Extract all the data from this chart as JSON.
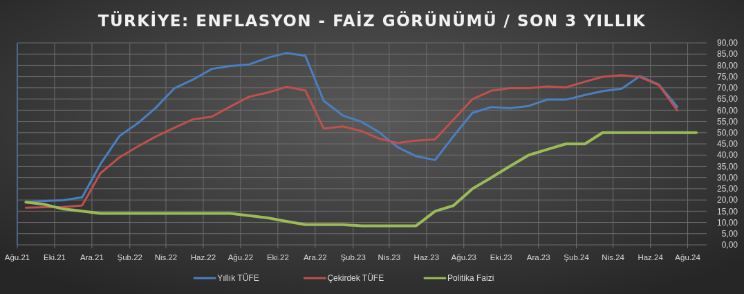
{
  "chart_data": {
    "type": "line",
    "title": "TÜRKİYE: ENFLASYON - FAİZ GÖRÜNÜMÜ / SON 3 YILLIK",
    "x": [
      "2021-08-15",
      "2021-09-15",
      "2021-10-15",
      "2021-11-15",
      "2021-12-15",
      "2022-01-15",
      "2022-02-15",
      "2022-03-15",
      "2022-04-15",
      "2022-05-15",
      "2022-06-15",
      "2022-07-15",
      "2022-08-15",
      "2022-09-15",
      "2022-10-15",
      "2022-11-15",
      "2022-12-15",
      "2023-01-15",
      "2023-02-15",
      "2023-03-15",
      "2023-04-15",
      "2023-05-15",
      "2023-06-15",
      "2023-07-15",
      "2023-08-15",
      "2023-09-15",
      "2023-10-15",
      "2023-11-15",
      "2023-12-15",
      "2024-01-15",
      "2024-02-15",
      "2024-03-15",
      "2024-04-15",
      "2024-05-15",
      "2024-06-15",
      "2024-07-15",
      "2024-08-15"
    ],
    "series": [
      {
        "name": "Yıllık TÜFE",
        "color": "#4a7fc1",
        "values": [
          19.0,
          19.6,
          19.9,
          21.2,
          36.0,
          48.5,
          54.4,
          61.0,
          69.8,
          73.6,
          78.4,
          79.7,
          80.4,
          83.4,
          85.5,
          84.2,
          64.2,
          57.7,
          54.8,
          50.3,
          43.5,
          39.5,
          37.8,
          48.4,
          58.8,
          61.4,
          60.9,
          61.9,
          64.7,
          64.7,
          66.8,
          68.5,
          69.6,
          75.2,
          71.4,
          61.5,
          null
        ]
      },
      {
        "name": "Çekirdek TÜFE",
        "color": "#c0504d",
        "values": [
          16.6,
          16.8,
          16.9,
          17.6,
          31.9,
          39.0,
          44.0,
          48.2,
          52.2,
          55.9,
          57.1,
          61.6,
          66.0,
          67.9,
          70.4,
          68.8,
          51.8,
          52.8,
          50.7,
          47.4,
          45.4,
          46.5,
          47.0,
          55.8,
          64.9,
          68.7,
          69.8,
          69.8,
          70.6,
          70.2,
          72.7,
          74.9,
          75.6,
          74.8,
          71.2,
          59.9,
          null
        ]
      },
      {
        "name": "Politika Faizi",
        "color": "#9bbb59",
        "values": [
          19.0,
          18.0,
          16.0,
          15.0,
          14.0,
          14.0,
          14.0,
          14.0,
          14.0,
          14.0,
          14.0,
          14.0,
          13.0,
          12.0,
          10.5,
          9.0,
          9.0,
          9.0,
          8.5,
          8.5,
          8.5,
          8.5,
          15.0,
          17.5,
          25.0,
          30.0,
          35.0,
          40.0,
          42.5,
          45.0,
          45.0,
          50.0,
          50.0,
          50.0,
          50.0,
          50.0,
          50.0
        ]
      }
    ],
    "xlim": [
      "2021-08-01",
      "2024-09-01"
    ],
    "xticks": [
      {
        "value": "2021-08-01",
        "label": "Ağu.21"
      },
      {
        "value": "2021-10-01",
        "label": "Eki.21"
      },
      {
        "value": "2021-12-01",
        "label": "Ara.21"
      },
      {
        "value": "2022-02-01",
        "label": "Şub.22"
      },
      {
        "value": "2022-04-01",
        "label": "Nis.22"
      },
      {
        "value": "2022-06-01",
        "label": "Haz.22"
      },
      {
        "value": "2022-08-01",
        "label": "Ağu.22"
      },
      {
        "value": "2022-10-01",
        "label": "Eki.22"
      },
      {
        "value": "2022-12-01",
        "label": "Ara.22"
      },
      {
        "value": "2023-02-01",
        "label": "Şub.23"
      },
      {
        "value": "2023-04-01",
        "label": "Nis.23"
      },
      {
        "value": "2023-06-01",
        "label": "Haz.23"
      },
      {
        "value": "2023-08-01",
        "label": "Ağu.23"
      },
      {
        "value": "2023-10-01",
        "label": "Eki.23"
      },
      {
        "value": "2023-12-01",
        "label": "Ara.23"
      },
      {
        "value": "2024-02-01",
        "label": "Şub.24"
      },
      {
        "value": "2024-04-01",
        "label": "Nis.24"
      },
      {
        "value": "2024-06-01",
        "label": "Haz.24"
      },
      {
        "value": "2024-08-01",
        "label": "Ağu.24"
      }
    ],
    "ylim": [
      0,
      90
    ],
    "yticks": [
      {
        "value": 0,
        "label": "0,00"
      },
      {
        "value": 5,
        "label": "5,00"
      },
      {
        "value": 10,
        "label": "10,00"
      },
      {
        "value": 15,
        "label": "15,00"
      },
      {
        "value": 20,
        "label": "20,00"
      },
      {
        "value": 25,
        "label": "25,00"
      },
      {
        "value": 30,
        "label": "30,00"
      },
      {
        "value": 35,
        "label": "35,00"
      },
      {
        "value": 40,
        "label": "40,00"
      },
      {
        "value": 45,
        "label": "45,00"
      },
      {
        "value": 50,
        "label": "50,00"
      },
      {
        "value": 55,
        "label": "55,00"
      },
      {
        "value": 60,
        "label": "60,00"
      },
      {
        "value": 65,
        "label": "65,00"
      },
      {
        "value": 70,
        "label": "70,00"
      },
      {
        "value": 75,
        "label": "75,00"
      },
      {
        "value": 80,
        "label": "80,00"
      },
      {
        "value": 85,
        "label": "85,00"
      },
      {
        "value": 90,
        "label": "90,00"
      }
    ],
    "grid": true,
    "legend": "bottom",
    "marker": "none",
    "line_style": "solid"
  }
}
